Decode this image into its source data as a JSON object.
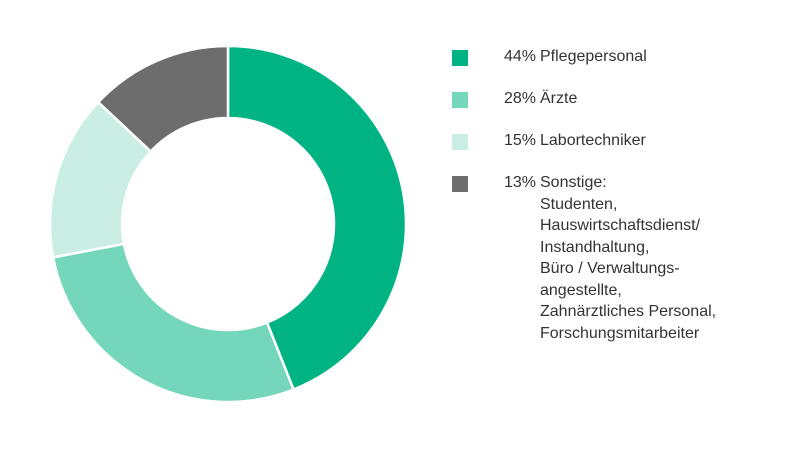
{
  "chart_data": {
    "type": "pie",
    "donut": true,
    "legend_position": "right",
    "slices": [
      {
        "label": "Pflegepersonal",
        "percent_label": "44%",
        "value": 44,
        "color": "#00b383"
      },
      {
        "label": "Ärzte",
        "percent_label": "28%",
        "value": 28,
        "color": "#74d7bb"
      },
      {
        "label": "Labortechniker",
        "percent_label": "15%",
        "value": 15,
        "color": "#caeee3"
      },
      {
        "label": "Sonstige:",
        "percent_label": "13%",
        "value": 13,
        "color": "#6d6d6d",
        "details": [
          "Studenten,",
          "Hauswirtschaftsdienst/",
          "Instandhaltung,",
          "Büro / Verwaltungs-",
          "angestellte,",
          "Zahnärztliches Personal,",
          "Forschungsmitarbeiter"
        ]
      }
    ]
  }
}
